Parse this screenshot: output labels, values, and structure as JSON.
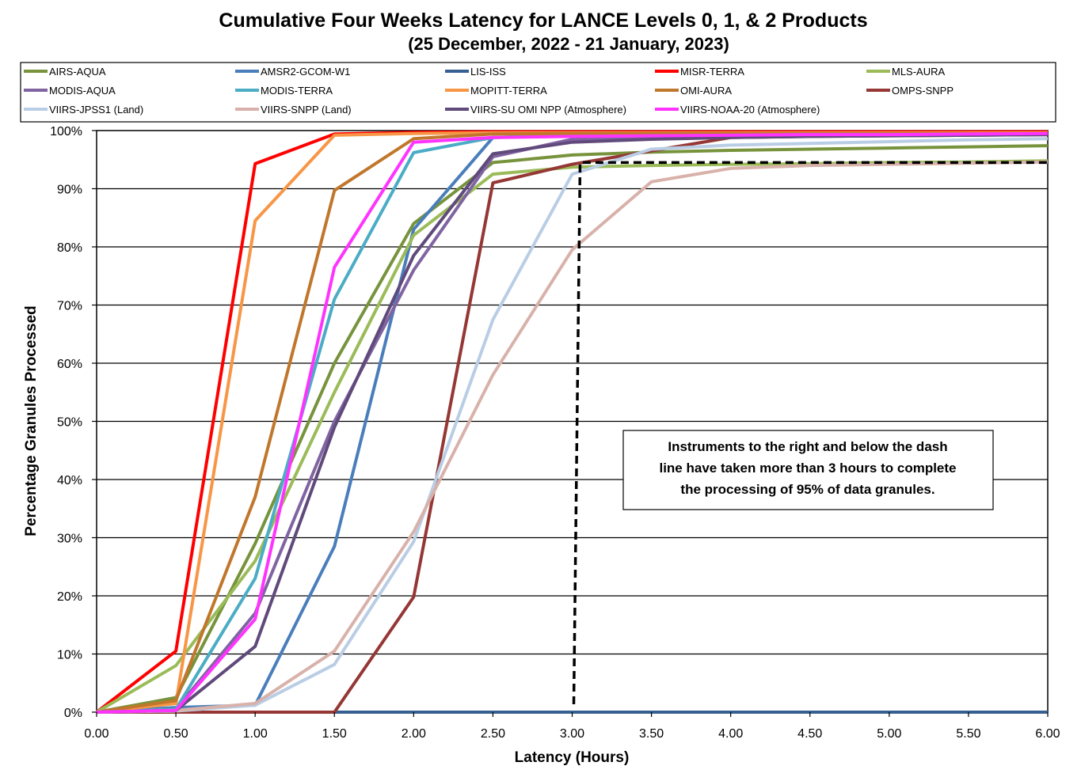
{
  "chart_data": {
    "type": "line",
    "title": "Cumulative Four Weeks Latency  for LANCE Levels 0, 1, & 2 Products",
    "subtitle": "(25 December, 2022  -  21 January, 2023)",
    "xlabel": "Latency (Hours)",
    "ylabel": "Percentage Granules Processed",
    "x": [
      0,
      0.5,
      1,
      1.5,
      2,
      2.5,
      3,
      3.5,
      4,
      4.5,
      5,
      5.5,
      6
    ],
    "x_tick_labels": [
      "0.00",
      "0.50",
      "1.00",
      "1.50",
      "2.00",
      "2.50",
      "3.00",
      "3.50",
      "4.00",
      "4.50",
      "5.00",
      "5.50",
      "6.00"
    ],
    "y_tick_labels": [
      "0%",
      "10%",
      "20%",
      "30%",
      "40%",
      "50%",
      "60%",
      "70%",
      "80%",
      "90%",
      "100%"
    ],
    "xlim": [
      0,
      6
    ],
    "ylim": [
      0,
      100
    ],
    "grid": "horizontal",
    "legend_position": "top",
    "series": [
      {
        "name": "AIRS-AQUA",
        "color": "#77933c",
        "values": [
          0,
          2.5,
          29,
          60,
          84,
          94.5,
          95.8,
          96.3,
          96.6,
          96.8,
          97,
          97.2,
          97.4
        ]
      },
      {
        "name": "AMSR2-GCOM-W1",
        "color": "#4a7ebb",
        "values": [
          0,
          0.8,
          1.2,
          28.5,
          83,
          98.8,
          99.2,
          99.4,
          99.5,
          99.6,
          99.6,
          99.6,
          99.7
        ]
      },
      {
        "name": "LIS-ISS",
        "color": "#376092",
        "values": [
          0,
          0,
          0,
          0,
          0,
          0,
          0,
          0,
          0,
          0,
          0,
          0,
          0
        ]
      },
      {
        "name": "MISR-TERRA",
        "color": "#ff0000",
        "values": [
          0,
          10.5,
          94.3,
          99.4,
          99.7,
          99.8,
          99.8,
          99.8,
          99.8,
          99.8,
          99.8,
          99.8,
          99.8
        ]
      },
      {
        "name": "MLS-AURA",
        "color": "#9bbb59",
        "values": [
          0,
          8,
          26,
          55,
          82,
          92.5,
          93.7,
          94,
          94.2,
          94.3,
          94.5,
          94.6,
          94.8
        ]
      },
      {
        "name": "MODIS-AQUA",
        "color": "#8064a2",
        "values": [
          0,
          0.5,
          17,
          50,
          76,
          95.5,
          98.5,
          98.8,
          99,
          99.1,
          99.2,
          99.3,
          99.4
        ]
      },
      {
        "name": "MODIS-TERRA",
        "color": "#4bacc6",
        "values": [
          0,
          0.5,
          23,
          71,
          96.2,
          98.8,
          99.1,
          99.3,
          99.4,
          99.4,
          99.5,
          99.5,
          99.5
        ]
      },
      {
        "name": "MOPITT-TERRA",
        "color": "#f79646",
        "values": [
          0,
          1.5,
          84.5,
          99.2,
          99.5,
          99.6,
          99.6,
          99.6,
          99.6,
          99.6,
          99.6,
          99.6,
          99.6
        ]
      },
      {
        "name": "OMI-AURA",
        "color": "#c0772c",
        "values": [
          0,
          2,
          37,
          89.7,
          98.6,
          99.4,
          99.5,
          99.5,
          99.5,
          99.5,
          99.5,
          99.5,
          99.5
        ]
      },
      {
        "name": "OMPS-SNPP",
        "color": "#953735",
        "values": [
          0,
          0,
          0,
          0,
          19.8,
          91,
          94.2,
          96.5,
          98.8,
          99,
          99.1,
          99.2,
          99.3
        ]
      },
      {
        "name": "VIIRS-JPSS1 (Land)",
        "color": "#b9cde5",
        "values": [
          0,
          0.2,
          1.2,
          8.2,
          29.3,
          67.5,
          92.5,
          96.8,
          97.5,
          97.8,
          98.1,
          98.4,
          98.6
        ]
      },
      {
        "name": "VIIRS-SNPP (Land)",
        "color": "#d8b2aa",
        "values": [
          0,
          0.3,
          1.5,
          10.5,
          31,
          58,
          79.5,
          91.2,
          93.5,
          94,
          94.2,
          94.4,
          94.6
        ]
      },
      {
        "name": "VIIRS-SU OMI NPP (Atmosphere)",
        "color": "#604a7b",
        "values": [
          0,
          0.3,
          11.3,
          49,
          78.5,
          96,
          98,
          98.5,
          98.8,
          99,
          99.1,
          99.2,
          99.3
        ]
      },
      {
        "name": "VIIRS-NOAA-20 (Atmosphere)",
        "color": "#ff33ff",
        "values": [
          0,
          0.3,
          16,
          76.5,
          98,
          98.8,
          99,
          99.1,
          99.2,
          99.3,
          99.3,
          99.4,
          99.5
        ]
      }
    ],
    "annotation": {
      "text_lines": [
        "Instruments to the right and below the dash",
        "line have taken more than 3 hours to complete",
        "the processing of 95% of data granules."
      ]
    },
    "threshold_line": {
      "x": 3.05,
      "y": 94.5,
      "style": "dashed"
    }
  }
}
